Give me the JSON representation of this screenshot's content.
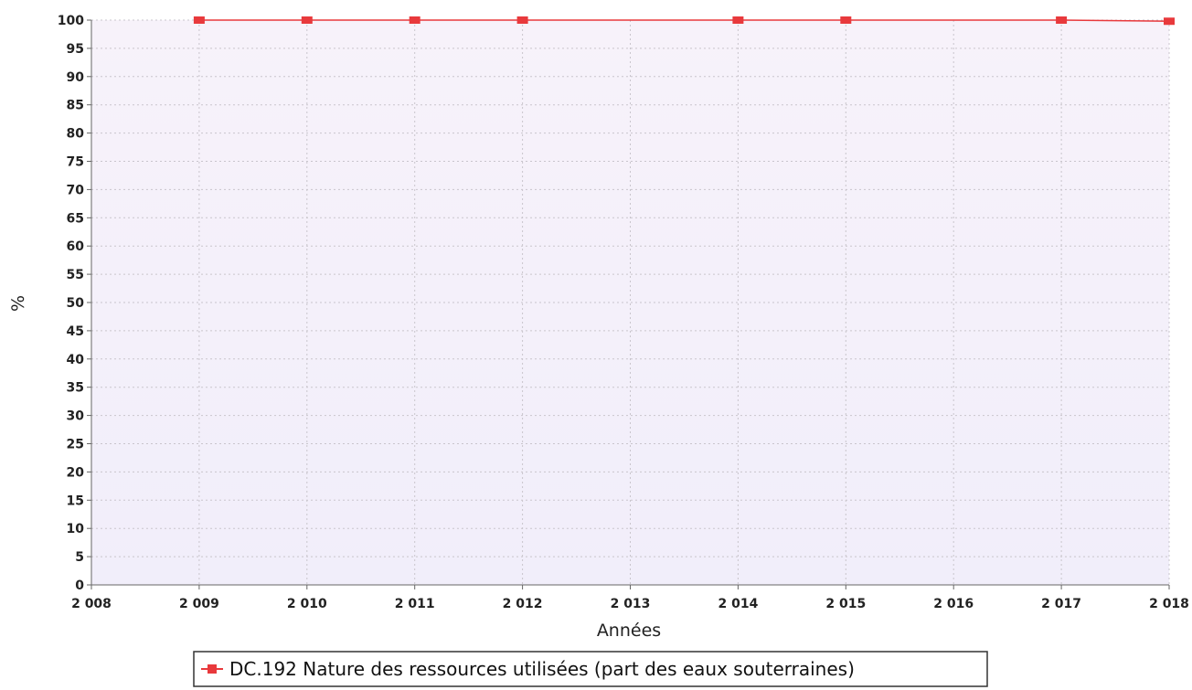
{
  "chart_data": {
    "type": "line",
    "xlabel": "Années",
    "ylabel": "%",
    "xlim": [
      2008,
      2018
    ],
    "ylim": [
      0,
      100
    ],
    "x_ticks": [
      2008,
      2009,
      2010,
      2011,
      2012,
      2013,
      2014,
      2015,
      2016,
      2017,
      2018
    ],
    "x_tick_labels": [
      "2 008",
      "2 009",
      "2 010",
      "2 011",
      "2 012",
      "2 013",
      "2 014",
      "2 015",
      "2 016",
      "2 017",
      "2 018"
    ],
    "y_ticks": [
      0,
      5,
      10,
      15,
      20,
      25,
      30,
      35,
      40,
      45,
      50,
      55,
      60,
      65,
      70,
      75,
      80,
      85,
      90,
      95,
      100
    ],
    "grid": true,
    "legend_position": "bottom-center",
    "series": [
      {
        "name": "DC.192 Nature des ressources utilisées (part des eaux souterraines)",
        "color": "#e8393c",
        "x": [
          2009,
          2010,
          2011,
          2012,
          2014,
          2015,
          2017,
          2018
        ],
        "y": [
          100,
          100,
          100,
          100,
          100,
          100,
          100,
          99.8
        ]
      }
    ]
  }
}
